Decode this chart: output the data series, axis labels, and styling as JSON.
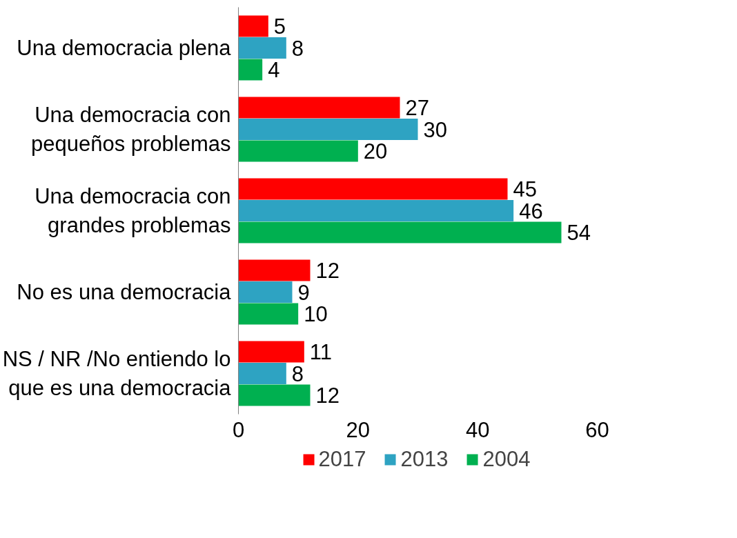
{
  "chart_data": {
    "type": "bar",
    "orientation": "horizontal",
    "categories": [
      "Una democracia plena",
      "Una democracia con\npequeños problemas",
      "Una democracia con\ngrandes problemas",
      "No es una democracia",
      "NS / NR /No entiendo lo\nque es una democracia"
    ],
    "series": [
      {
        "name": "2017",
        "color": "#ff0000",
        "values": [
          5,
          27,
          45,
          12,
          11
        ]
      },
      {
        "name": "2013",
        "color": "#2ea3c2",
        "values": [
          8,
          30,
          46,
          9,
          8
        ]
      },
      {
        "name": "2004",
        "color": "#00b050",
        "values": [
          4,
          20,
          54,
          10,
          12
        ]
      }
    ],
    "xlim": [
      0,
      60
    ],
    "xticks": [
      0,
      20,
      40,
      60
    ],
    "data_labels": true,
    "legend": "bottom",
    "grid": false
  }
}
